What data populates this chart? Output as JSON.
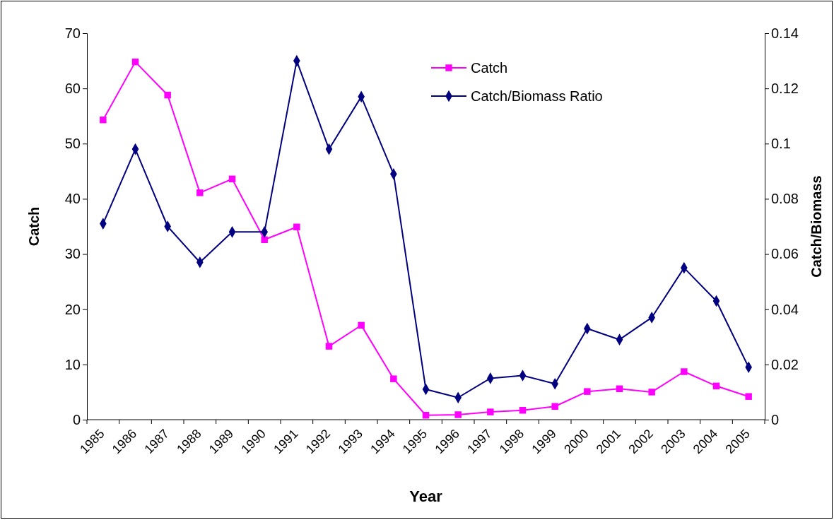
{
  "chart_data": {
    "type": "line",
    "xlabel": "Year",
    "ylabel": "Catch",
    "y2label": "Catch/Biomass",
    "categories": [
      "1985",
      "1986",
      "1987",
      "1988",
      "1989",
      "1990",
      "1991",
      "1992",
      "1993",
      "1994",
      "1995",
      "1996",
      "1997",
      "1998",
      "1999",
      "2000",
      "2001",
      "2002",
      "2003",
      "2004",
      "2005"
    ],
    "series": [
      {
        "name": "Catch",
        "color": "#ff00ff",
        "marker": "square",
        "values": [
          54.3,
          64.8,
          58.8,
          41.1,
          43.6,
          32.6,
          34.9,
          13.3,
          17.1,
          7.4,
          0.8,
          0.9,
          1.4,
          1.7,
          2.4,
          5.1,
          5.6,
          5.0,
          8.7,
          6.1,
          4.2
        ]
      },
      {
        "name": "Catch/Biomass Ratio",
        "color": "#000080",
        "marker": "diamond",
        "axis": "y2",
        "values": [
          0.071,
          0.098,
          0.07,
          0.057,
          0.068,
          0.068,
          0.13,
          0.098,
          0.117,
          0.089,
          0.011,
          0.008,
          0.015,
          0.016,
          0.013,
          0.033,
          0.029,
          0.037,
          0.055,
          0.043,
          0.019
        ]
      }
    ],
    "ylim": [
      0,
      70
    ],
    "yticks": [
      0,
      10,
      20,
      30,
      40,
      50,
      60,
      70
    ],
    "y2lim": [
      0,
      0.14
    ],
    "y2ticks": [
      0,
      0.02,
      0.04,
      0.06,
      0.08,
      0.1,
      0.12,
      0.14
    ],
    "legend": "top right",
    "grid": false,
    "line_style": "solid"
  }
}
